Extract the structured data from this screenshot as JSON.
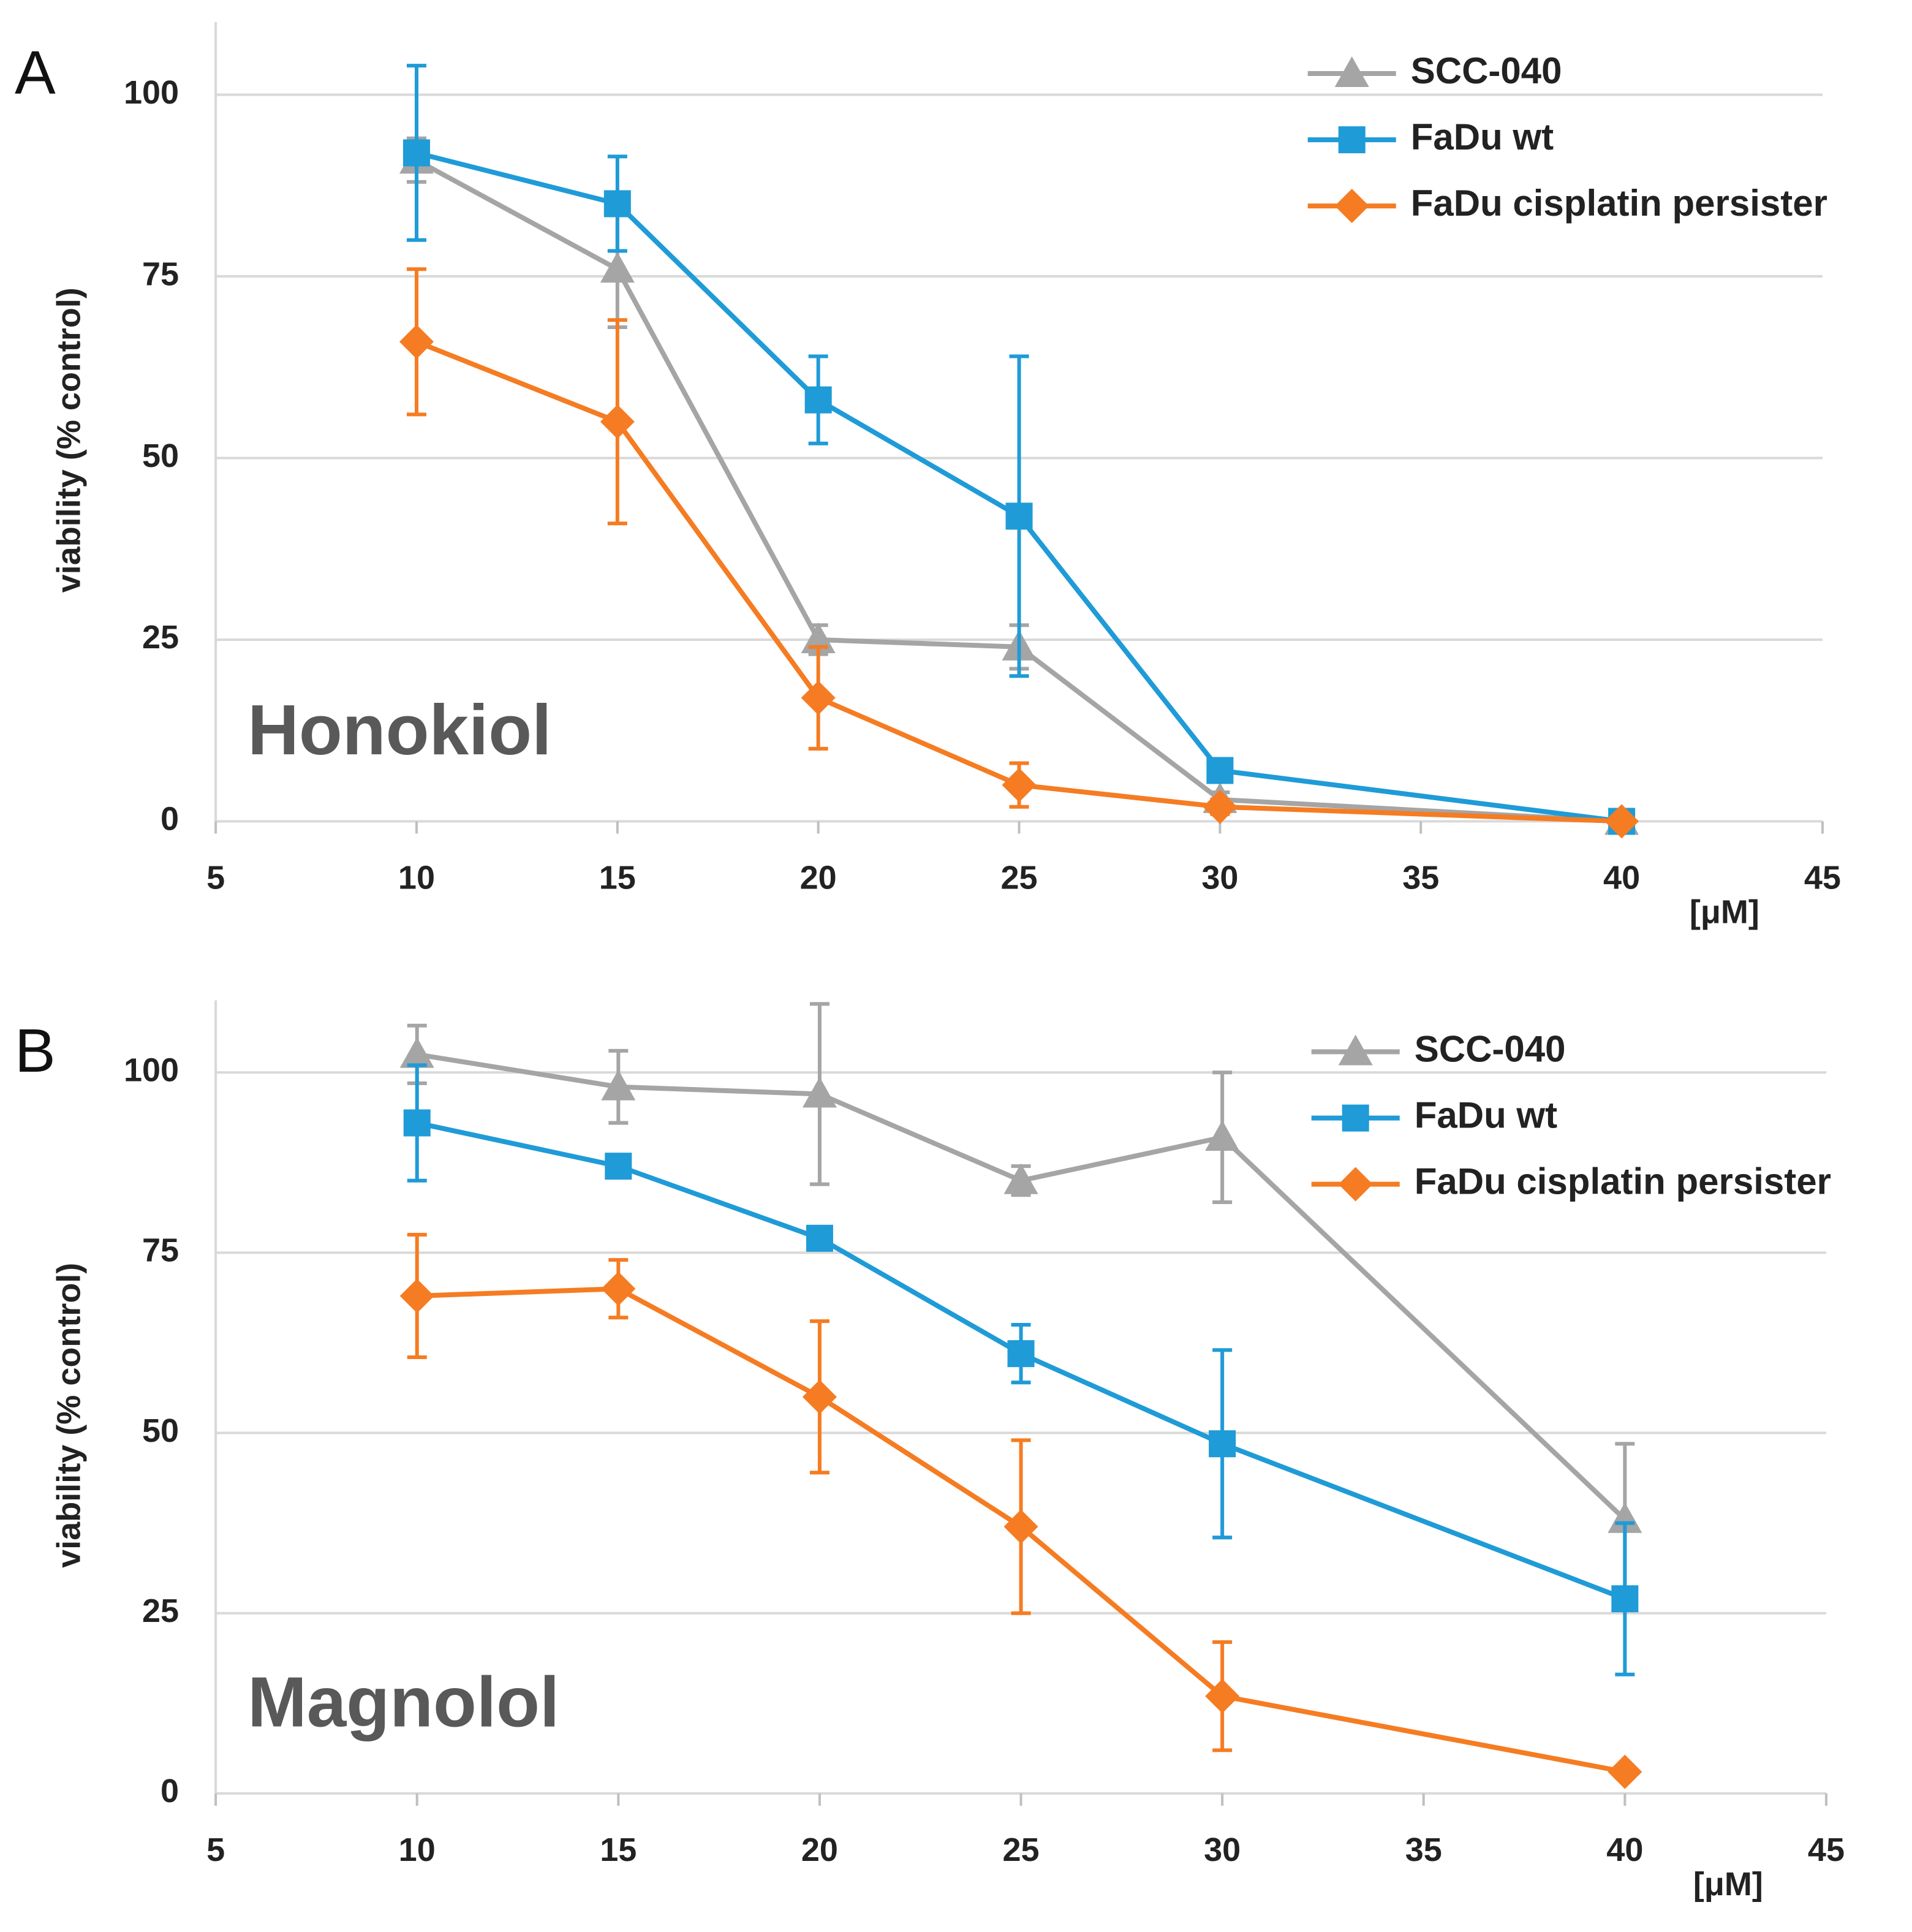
{
  "chart_data": [
    {
      "type": "line",
      "panel_label": "A",
      "annotation": "Honokiol",
      "y_label": "viability (% control)",
      "x_label": "[μM]",
      "xlim": [
        5,
        45
      ],
      "xticks": [
        5,
        10,
        15,
        20,
        25,
        30,
        35,
        40,
        45
      ],
      "ylim": [
        0,
        110
      ],
      "yticks": [
        0,
        25,
        50,
        75,
        100
      ],
      "grid": true,
      "legend": "top-right",
      "x": [
        10,
        15,
        20,
        25,
        30,
        40
      ],
      "series": [
        {
          "name": "SCC-040",
          "color": "#a5a5a5",
          "marker": "triangle",
          "values": [
            91,
            76,
            25,
            24,
            3,
            0
          ],
          "errors": [
            3,
            8,
            2,
            3,
            1,
            0
          ]
        },
        {
          "name": "FaDu wt",
          "color": "#1f9bd7",
          "marker": "square",
          "values": [
            92,
            85,
            58,
            42,
            7,
            0
          ],
          "errors": [
            12,
            6.5,
            6,
            22,
            1,
            0
          ]
        },
        {
          "name": "FaDu cisplatin persister",
          "color": "#f57c22",
          "marker": "diamond",
          "values": [
            66,
            55,
            17,
            5,
            2,
            0
          ],
          "errors": [
            10,
            14,
            7,
            3,
            1,
            0
          ]
        }
      ]
    },
    {
      "type": "line",
      "panel_label": "B",
      "annotation": "Magnolol",
      "y_label": "viability (% control)",
      "x_label": "[μM]",
      "xlim": [
        5,
        45
      ],
      "xticks": [
        5,
        10,
        15,
        20,
        25,
        30,
        35,
        40,
        45
      ],
      "ylim": [
        0,
        110
      ],
      "yticks": [
        0,
        25,
        50,
        75,
        100
      ],
      "grid": true,
      "legend": "top-right",
      "x": [
        10,
        15,
        20,
        25,
        30,
        40
      ],
      "series": [
        {
          "name": "SCC-040",
          "color": "#a5a5a5",
          "marker": "triangle",
          "values": [
            102.5,
            98,
            97,
            85,
            91,
            38
          ],
          "errors": [
            4,
            5,
            12.5,
            2,
            9,
            10.5
          ]
        },
        {
          "name": "FaDu wt",
          "color": "#1f9bd7",
          "marker": "square",
          "values": [
            93,
            87,
            77,
            61,
            48.5,
            27
          ],
          "errors": [
            8,
            1,
            1,
            4,
            13,
            10.5
          ]
        },
        {
          "name": "FaDu cisplatin persister",
          "color": "#f57c22",
          "marker": "diamond",
          "values": [
            69,
            70,
            55,
            37,
            13.5,
            3
          ],
          "errors": [
            8.5,
            4,
            10.5,
            12,
            7.5,
            0.5
          ]
        }
      ]
    }
  ]
}
